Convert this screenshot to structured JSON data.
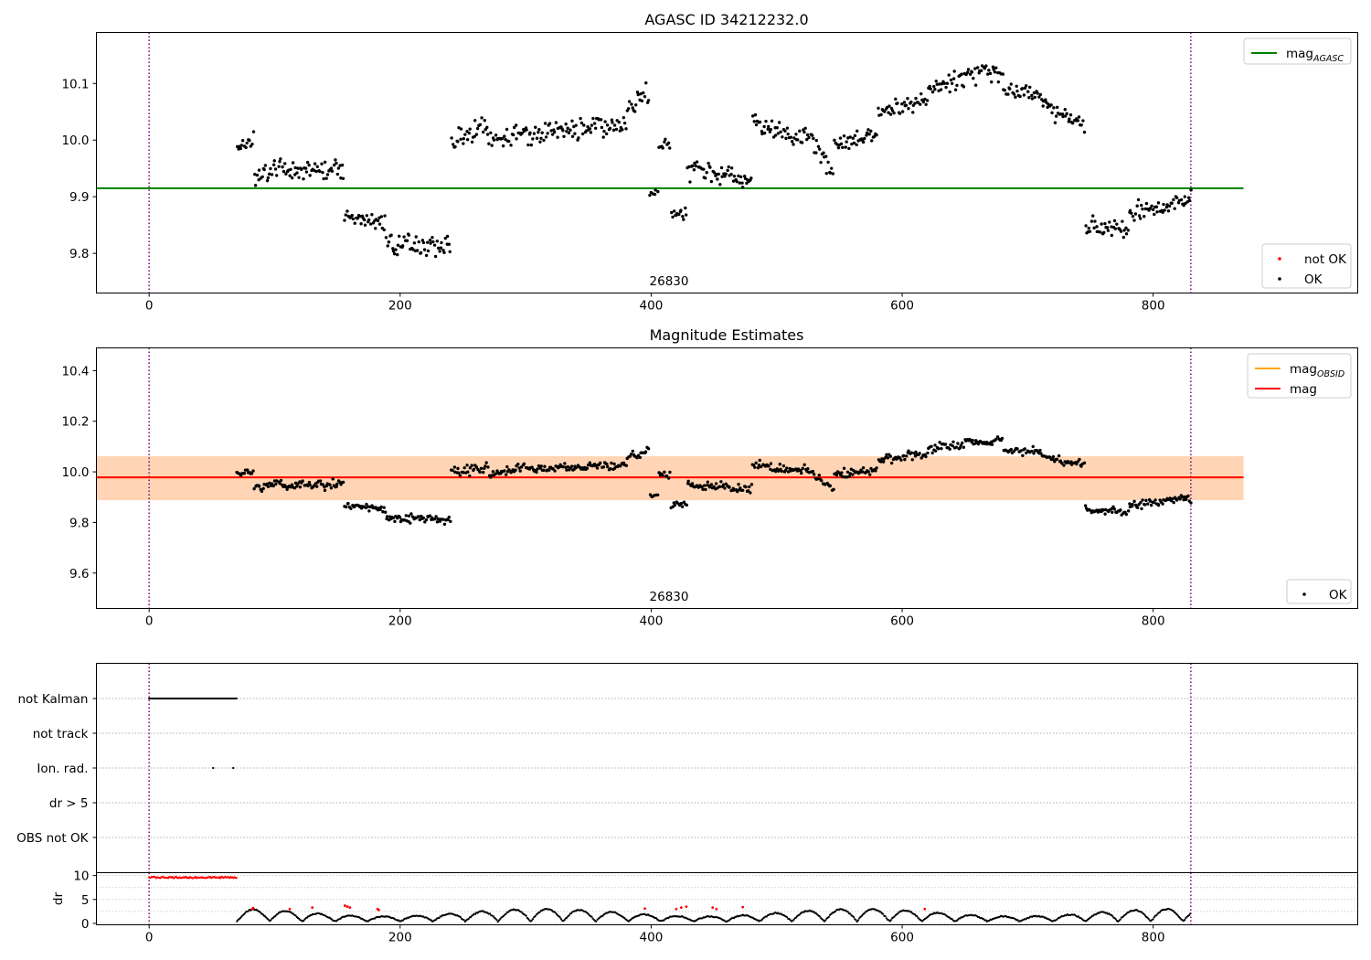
{
  "chart_data": [
    {
      "type": "scatter",
      "title": "AGASC ID 34212232.0",
      "xlim": [
        -42,
        963
      ],
      "ylim": [
        9.73,
        10.19
      ],
      "x_ticks": [
        0,
        200,
        400,
        600,
        800
      ],
      "y_ticks": [
        9.8,
        9.9,
        10.0,
        10.1
      ],
      "y_tick_labels": [
        "9.8",
        "9.9",
        "10.0",
        "10.1"
      ],
      "vlines": [
        0,
        830
      ],
      "vline_color": "#800080",
      "hlines": [
        {
          "name": "mag_AGASC",
          "value": 9.915,
          "xrange": [
            -42,
            872
          ],
          "color": "#008000"
        }
      ],
      "obsid_label": {
        "text": "26830",
        "x": 415
      },
      "legends": [
        {
          "position": "top-right",
          "entries": [
            {
              "label": "mag",
              "sub": "AGASC",
              "kind": "line",
              "color": "#008000"
            }
          ]
        },
        {
          "position": "bottom-right",
          "entries": [
            {
              "label": "not OK",
              "kind": "dot",
              "color": "#ff0000"
            },
            {
              "label": "OK",
              "kind": "dot",
              "color": "#000000"
            }
          ]
        }
      ],
      "series": [
        {
          "name": "OK",
          "color": "#000000",
          "segments": [
            {
              "x": [
                70,
                83
              ],
              "y": [
                9.99,
                10.0
              ],
              "spread": 0.012
            },
            {
              "x": [
                84,
                105
              ],
              "y": [
                9.93,
                9.96
              ],
              "spread": 0.015
            },
            {
              "x": [
                106,
                155
              ],
              "y": [
                9.945,
                9.95
              ],
              "spread": 0.015
            },
            {
              "x": [
                156,
                188
              ],
              "y": [
                9.87,
                9.85
              ],
              "spread": 0.012
            },
            {
              "x": [
                189,
                240
              ],
              "y": [
                9.82,
                9.81
              ],
              "spread": 0.015
            },
            {
              "x": [
                241,
                270
              ],
              "y": [
                10.0,
                10.02
              ],
              "spread": 0.02
            },
            {
              "x": [
                271,
                300
              ],
              "y": [
                9.99,
                10.02
              ],
              "spread": 0.015
            },
            {
              "x": [
                301,
                380
              ],
              "y": [
                10.01,
                10.03
              ],
              "spread": 0.015
            },
            {
              "x": [
                381,
                398
              ],
              "y": [
                10.06,
                10.08
              ],
              "spread": 0.015
            },
            {
              "x": [
                399,
                405
              ],
              "y": [
                9.905,
                9.91
              ],
              "spread": 0.006
            },
            {
              "x": [
                406,
                415
              ],
              "y": [
                9.99,
                9.99
              ],
              "spread": 0.012
            },
            {
              "x": [
                416,
                428
              ],
              "y": [
                9.87,
                9.87
              ],
              "spread": 0.01
            },
            {
              "x": [
                429,
                480
              ],
              "y": [
                9.95,
                9.93
              ],
              "spread": 0.015
            },
            {
              "x": [
                481,
                520
              ],
              "y": [
                10.03,
                10.0
              ],
              "spread": 0.015
            },
            {
              "x": [
                521,
                545
              ],
              "y": [
                10.02,
                9.94
              ],
              "spread": 0.015
            },
            {
              "x": [
                546,
                580
              ],
              "y": [
                9.99,
                10.01
              ],
              "spread": 0.015
            },
            {
              "x": [
                581,
                620
              ],
              "y": [
                10.05,
                10.07
              ],
              "spread": 0.015
            },
            {
              "x": [
                621,
                650
              ],
              "y": [
                10.09,
                10.11
              ],
              "spread": 0.015
            },
            {
              "x": [
                651,
                680
              ],
              "y": [
                10.12,
                10.12
              ],
              "spread": 0.015
            },
            {
              "x": [
                681,
                710
              ],
              "y": [
                10.09,
                10.08
              ],
              "spread": 0.015
            },
            {
              "x": [
                711,
                745
              ],
              "y": [
                10.06,
                10.03
              ],
              "spread": 0.015
            },
            {
              "x": [
                746,
                780
              ],
              "y": [
                9.85,
                9.84
              ],
              "spread": 0.015
            },
            {
              "x": [
                781,
                830
              ],
              "y": [
                9.87,
                9.895
              ],
              "spread": 0.015
            }
          ]
        },
        {
          "name": "not OK",
          "color": "#ff0000",
          "segments": []
        }
      ]
    },
    {
      "type": "scatter",
      "title": "Magnitude Estimates",
      "xlim": [
        -42,
        963
      ],
      "ylim": [
        9.46,
        10.49
      ],
      "x_ticks": [
        0,
        200,
        400,
        600,
        800
      ],
      "y_ticks": [
        9.6,
        9.8,
        10.0,
        10.2,
        10.4
      ],
      "y_tick_labels": [
        "9.6",
        "9.8",
        "10.0",
        "10.2",
        "10.4"
      ],
      "vlines": [
        0,
        830
      ],
      "vline_color": "#800080",
      "bands": [
        {
          "name": "mag range",
          "y": [
            9.888,
            10.062
          ],
          "xrange": [
            -42,
            872
          ],
          "color": "#ffc0cb",
          "opacity": 0.45
        },
        {
          "name": "mag_OBSID range",
          "y": [
            9.888,
            10.062
          ],
          "xrange": [
            -42,
            872
          ],
          "color": "#ffa500",
          "opacity": 0.22
        }
      ],
      "hlines": [
        {
          "name": "mag_OBSID",
          "value": 9.978,
          "xrange": [
            -42,
            872
          ],
          "color": "#ffa500"
        },
        {
          "name": "mag",
          "value": 9.978,
          "xrange": [
            -42,
            872
          ],
          "color": "#ff0000"
        }
      ],
      "obsid_label": {
        "text": "26830",
        "x": 415
      },
      "legends": [
        {
          "position": "top-right",
          "entries": [
            {
              "label": "mag",
              "sub": "OBSID",
              "kind": "line",
              "color": "#ffa500"
            },
            {
              "label": "mag",
              "kind": "line",
              "color": "#ff0000"
            }
          ]
        },
        {
          "position": "bottom-right",
          "entries": [
            {
              "label": "OK",
              "kind": "dot",
              "color": "#000000"
            }
          ]
        }
      ],
      "series": [
        {
          "name": "OK",
          "color": "#000000",
          "segments": [
            {
              "x": [
                70,
                83
              ],
              "y": [
                9.99,
                10.0
              ],
              "spread": 0.012
            },
            {
              "x": [
                84,
                105
              ],
              "y": [
                9.93,
                9.96
              ],
              "spread": 0.015
            },
            {
              "x": [
                106,
                155
              ],
              "y": [
                9.945,
                9.95
              ],
              "spread": 0.015
            },
            {
              "x": [
                156,
                188
              ],
              "y": [
                9.87,
                9.85
              ],
              "spread": 0.012
            },
            {
              "x": [
                189,
                240
              ],
              "y": [
                9.82,
                9.81
              ],
              "spread": 0.015
            },
            {
              "x": [
                241,
                270
              ],
              "y": [
                10.0,
                10.02
              ],
              "spread": 0.02
            },
            {
              "x": [
                271,
                300
              ],
              "y": [
                9.99,
                10.02
              ],
              "spread": 0.015
            },
            {
              "x": [
                301,
                380
              ],
              "y": [
                10.01,
                10.03
              ],
              "spread": 0.015
            },
            {
              "x": [
                381,
                398
              ],
              "y": [
                10.06,
                10.08
              ],
              "spread": 0.015
            },
            {
              "x": [
                399,
                405
              ],
              "y": [
                9.905,
                9.91
              ],
              "spread": 0.006
            },
            {
              "x": [
                406,
                415
              ],
              "y": [
                9.99,
                9.99
              ],
              "spread": 0.012
            },
            {
              "x": [
                416,
                428
              ],
              "y": [
                9.87,
                9.87
              ],
              "spread": 0.01
            },
            {
              "x": [
                429,
                480
              ],
              "y": [
                9.95,
                9.93
              ],
              "spread": 0.015
            },
            {
              "x": [
                481,
                520
              ],
              "y": [
                10.03,
                10.0
              ],
              "spread": 0.015
            },
            {
              "x": [
                521,
                545
              ],
              "y": [
                10.02,
                9.94
              ],
              "spread": 0.015
            },
            {
              "x": [
                546,
                580
              ],
              "y": [
                9.99,
                10.01
              ],
              "spread": 0.015
            },
            {
              "x": [
                581,
                620
              ],
              "y": [
                10.05,
                10.07
              ],
              "spread": 0.015
            },
            {
              "x": [
                621,
                650
              ],
              "y": [
                10.09,
                10.11
              ],
              "spread": 0.015
            },
            {
              "x": [
                651,
                680
              ],
              "y": [
                10.12,
                10.12
              ],
              "spread": 0.015
            },
            {
              "x": [
                681,
                710
              ],
              "y": [
                10.09,
                10.08
              ],
              "spread": 0.015
            },
            {
              "x": [
                711,
                745
              ],
              "y": [
                10.06,
                10.03
              ],
              "spread": 0.015
            },
            {
              "x": [
                746,
                780
              ],
              "y": [
                9.85,
                9.84
              ],
              "spread": 0.015
            },
            {
              "x": [
                781,
                830
              ],
              "y": [
                9.87,
                9.895
              ],
              "spread": 0.015
            }
          ]
        }
      ]
    },
    {
      "type": "scatter",
      "title": "",
      "xlim": [
        -42,
        963
      ],
      "y_categories": [
        "not Kalman",
        "not track",
        "Ion. rad.",
        "dr > 5",
        "OBS not OK"
      ],
      "vlines": [
        0,
        830
      ],
      "vline_color": "#800080",
      "flags": [
        {
          "category": "not Kalman",
          "x_range": [
            0,
            70
          ],
          "step": 1.2,
          "color": "#000000"
        },
        {
          "category": "Ion. rad.",
          "x": [
            51,
            67
          ],
          "color": "#000000"
        }
      ]
    },
    {
      "type": "scatter",
      "title": "",
      "ylabel": "dr",
      "xlim": [
        -42,
        963
      ],
      "ylim": [
        -0.3,
        10.6
      ],
      "x_ticks": [
        0,
        200,
        400,
        600,
        800
      ],
      "y_ticks": [
        0,
        5,
        10
      ],
      "y_tick_labels": [
        "0",
        "5",
        "10"
      ],
      "vlines": [
        0,
        830
      ],
      "vline_color": "#800080",
      "series": [
        {
          "name": "dr (flagged)",
          "color": "#ff0000",
          "x_range": [
            0,
            70
          ],
          "y": 9.6
        },
        {
          "name": "dr",
          "color": "#000000",
          "x_range": [
            70,
            830
          ]
        }
      ],
      "red_points": [
        {
          "x": 82,
          "y": 3.0
        },
        {
          "x": 83,
          "y": 3.2
        },
        {
          "x": 112,
          "y": 3.0
        },
        {
          "x": 130,
          "y": 3.3
        },
        {
          "x": 156,
          "y": 3.7
        },
        {
          "x": 158,
          "y": 3.5
        },
        {
          "x": 160,
          "y": 3.3
        },
        {
          "x": 182,
          "y": 3.0
        },
        {
          "x": 183,
          "y": 2.8
        },
        {
          "x": 395,
          "y": 3.1
        },
        {
          "x": 420,
          "y": 3.0
        },
        {
          "x": 424,
          "y": 3.3
        },
        {
          "x": 428,
          "y": 3.5
        },
        {
          "x": 449,
          "y": 3.3
        },
        {
          "x": 452,
          "y": 3.0
        },
        {
          "x": 473,
          "y": 3.4
        },
        {
          "x": 618,
          "y": 3.0
        }
      ]
    }
  ]
}
